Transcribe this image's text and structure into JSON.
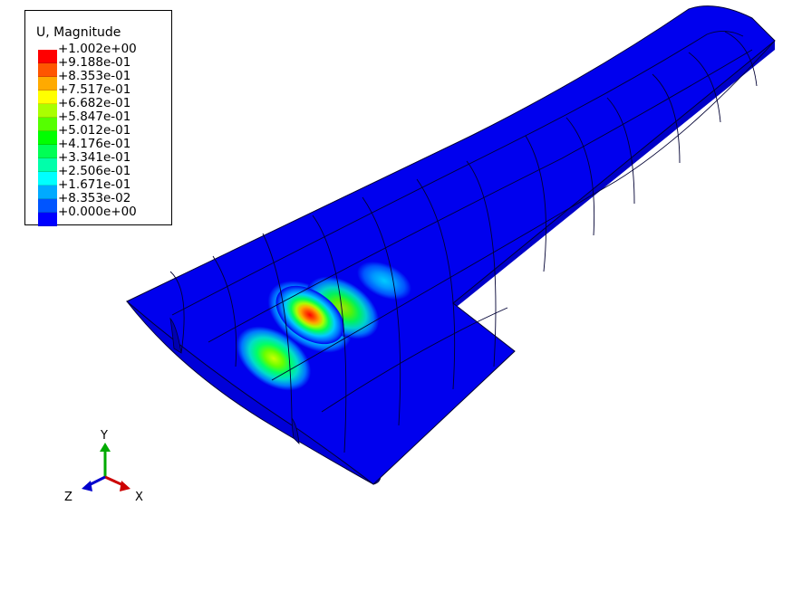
{
  "legend": {
    "title": "U, Magnitude",
    "levels": [
      {
        "label": "+1.002e+00",
        "color": "#ff0000"
      },
      {
        "label": "+9.188e-01",
        "color": "#ff5500"
      },
      {
        "label": "+8.353e-01",
        "color": "#ffaa00"
      },
      {
        "label": "+7.517e-01",
        "color": "#ffff00"
      },
      {
        "label": "+6.682e-01",
        "color": "#aaff00"
      },
      {
        "label": "+5.847e-01",
        "color": "#55ff00"
      },
      {
        "label": "+5.012e-01",
        "color": "#00ff00"
      },
      {
        "label": "+4.176e-01",
        "color": "#00ff55"
      },
      {
        "label": "+3.341e-01",
        "color": "#00ffaa"
      },
      {
        "label": "+2.506e-01",
        "color": "#00ffff"
      },
      {
        "label": "+1.671e-01",
        "color": "#00aaff"
      },
      {
        "label": "+8.353e-02",
        "color": "#0055ff"
      },
      {
        "label": "+0.000e+00",
        "color": "#0000ff"
      }
    ]
  },
  "model": {
    "base_color": "#0000ee",
    "mesh_color": "#000033"
  },
  "triad": {
    "x_label": "X",
    "y_label": "Y",
    "z_label": "Z",
    "x_color": "#cc0000",
    "y_color": "#00aa00",
    "z_color": "#0000cc"
  }
}
